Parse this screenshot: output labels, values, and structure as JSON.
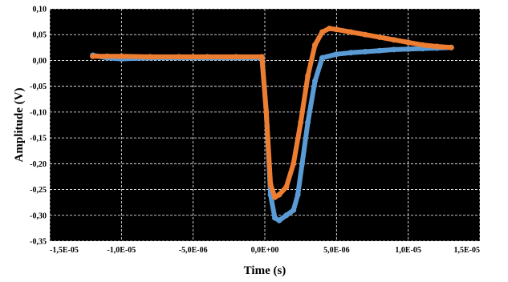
{
  "chart_data": {
    "type": "scatter",
    "title": "",
    "xlabel": "Time (s)",
    "ylabel": "Amplitude (V)",
    "xlim": [
      -1.5e-05,
      1.5e-05
    ],
    "ylim": [
      -0.35,
      0.1
    ],
    "grid": true,
    "legend": "none",
    "background": "#000000",
    "x_ticks": [
      {
        "value": -1.5e-05,
        "label": "-1,5E-05"
      },
      {
        "value": -1e-05,
        "label": "-1,0E-05"
      },
      {
        "value": -5e-06,
        "label": "-5,0E-06"
      },
      {
        "value": 0,
        "label": "0,0E+00"
      },
      {
        "value": 5e-06,
        "label": "5,0E-06"
      },
      {
        "value": 1e-05,
        "label": "1,0E-05"
      },
      {
        "value": 1.5e-05,
        "label": "1,5E-05"
      }
    ],
    "y_ticks": [
      {
        "value": 0.1,
        "label": "0,10"
      },
      {
        "value": 0.05,
        "label": "0,05"
      },
      {
        "value": 0.0,
        "label": "0,00"
      },
      {
        "value": -0.05,
        "label": "-0,05"
      },
      {
        "value": -0.1,
        "label": "-0,10"
      },
      {
        "value": -0.15,
        "label": "-0,15"
      },
      {
        "value": -0.2,
        "label": "-0,20"
      },
      {
        "value": -0.25,
        "label": "-0,25"
      },
      {
        "value": -0.3,
        "label": "-0,30"
      },
      {
        "value": -0.35,
        "label": "-0,35"
      }
    ],
    "series": [
      {
        "color": "#5b9bd5",
        "x": [
          -1.2e-05,
          -1.1e-05,
          -1e-05,
          -8e-06,
          -6e-06,
          -4e-06,
          -2e-06,
          -2e-07,
          1e-07,
          4e-07,
          7e-07,
          1e-06,
          1.5e-06,
          2e-06,
          2.3e-06,
          2.6e-06,
          3e-06,
          3.5e-06,
          4e-06,
          5e-06,
          6e-06,
          7e-06,
          8e-06,
          9e-06,
          1e-05,
          1.1e-05,
          1.2e-05,
          1.3e-05
        ],
        "y": [
          0.01,
          0.005,
          0.003,
          0.005,
          0.005,
          0.005,
          0.005,
          0.005,
          -0.1,
          -0.26,
          -0.305,
          -0.31,
          -0.3,
          -0.29,
          -0.26,
          -0.2,
          -0.12,
          -0.04,
          0.005,
          0.012,
          0.015,
          0.017,
          0.019,
          0.021,
          0.022,
          0.023,
          0.024,
          0.025
        ]
      },
      {
        "color": "#ed7d31",
        "x": [
          -1.2e-05,
          -1.1e-05,
          -1e-05,
          -8e-06,
          -6e-06,
          -4e-06,
          -2e-06,
          -2e-07,
          1e-07,
          4e-07,
          7e-07,
          1e-06,
          1.5e-06,
          2e-06,
          2.5e-06,
          3e-06,
          3.5e-06,
          4e-06,
          4.5e-06,
          5e-06,
          6e-06,
          7e-06,
          8e-06,
          9e-06,
          1e-05,
          1.1e-05,
          1.2e-05,
          1.3e-05
        ],
        "y": [
          0.008,
          0.008,
          0.008,
          0.007,
          0.007,
          0.007,
          0.007,
          0.007,
          -0.1,
          -0.24,
          -0.265,
          -0.26,
          -0.245,
          -0.2,
          -0.12,
          -0.03,
          0.03,
          0.055,
          0.062,
          0.06,
          0.055,
          0.05,
          0.045,
          0.04,
          0.035,
          0.03,
          0.027,
          0.025
        ]
      }
    ]
  }
}
